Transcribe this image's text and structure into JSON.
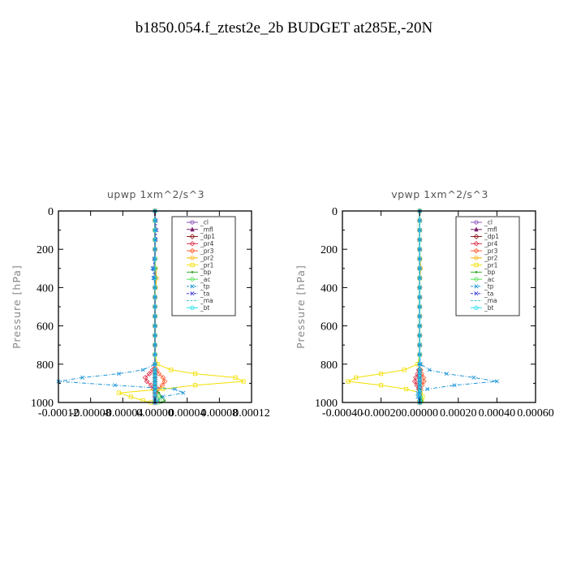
{
  "figure_title": "b1850.054.f_ztest2e_2b  BUDGET at285E,-20N",
  "colors": {
    "_cl": "#8a4fb8",
    "_mfl": "#7a1f6e",
    "_dp1": "#8b1a1a",
    "_pr4": "#e0304a",
    "_pr3": "#ff5a2e",
    "_pr2": "#ffb000",
    "_pr1": "#f2e000",
    "_bp": "#3aa832",
    "_ac": "#52e052",
    "_tp": "#1e96d8",
    "_ta": "#3a3ad8",
    "_ma": "#40c8d8",
    "_bt": "#20e0f0"
  },
  "chart_data": [
    {
      "type": "line",
      "title": "upwp   1xm^2/s^3",
      "ylabel": "Pressure [hPa]",
      "xlabel": "",
      "ylim": [
        1000,
        0
      ],
      "yticks": [
        0,
        200,
        400,
        600,
        800,
        1000
      ],
      "xlim": [
        -0.00012,
        0.00012
      ],
      "xtick_values": [
        -0.00012,
        -8e-05,
        -4e-05,
        0,
        4e-05,
        8e-05,
        0.00012
      ],
      "xticks": [
        "-0.00012",
        "-0.00008",
        "-0.00004",
        "0.00000",
        "0.00004",
        "0.00008",
        "0.00012"
      ],
      "grid": false,
      "legend_position": "upper-right",
      "legend": [
        "_cl",
        "_mfl",
        "_dp1",
        "_pr4",
        "_pr3",
        "_pr2",
        "_pr1",
        "_bp",
        "_ac",
        "_tp",
        "_ta",
        "_ma",
        "_bt"
      ],
      "y_levels": [
        0,
        50,
        100,
        150,
        200,
        250,
        300,
        350,
        400,
        450,
        500,
        550,
        600,
        650,
        700,
        750,
        800,
        830,
        850,
        870,
        890,
        910,
        930,
        950,
        970,
        990,
        1000
      ],
      "series": [
        {
          "name": "_cl",
          "x": [
            0,
            0,
            0,
            0,
            0,
            0,
            0,
            0,
            0,
            0,
            0,
            0,
            0,
            0,
            0,
            0,
            0,
            0,
            0,
            0,
            0,
            0,
            0,
            0,
            0,
            0,
            0
          ]
        },
        {
          "name": "_mfl",
          "x": [
            0,
            0,
            0,
            0,
            0,
            0,
            0,
            0,
            0,
            0,
            0,
            0,
            0,
            0,
            0,
            0,
            0,
            0,
            0,
            0,
            0,
            0,
            0,
            0,
            0,
            0,
            0
          ]
        },
        {
          "name": "_dp1",
          "x": [
            0,
            0,
            0,
            0,
            0,
            0,
            0,
            0,
            0,
            0,
            0,
            0,
            0,
            0,
            0,
            0,
            0,
            0,
            0,
            0,
            0,
            0,
            0,
            0,
            0,
            0,
            0
          ]
        },
        {
          "name": "_pr4",
          "x": [
            0,
            0,
            0,
            0,
            0,
            0,
            0,
            0,
            0,
            0,
            0,
            0,
            0,
            0,
            0,
            0,
            0,
            -3e-06,
            -7e-06,
            -1.2e-05,
            -1e-05,
            -5e-06,
            -2e-06,
            0,
            0,
            0,
            0
          ]
        },
        {
          "name": "_pr3",
          "x": [
            0,
            0,
            0,
            0,
            0,
            0,
            0,
            0,
            0,
            0,
            0,
            0,
            0,
            0,
            0,
            0,
            0,
            2e-06,
            5e-06,
            1e-05,
            1.2e-05,
            9e-06,
            4e-06,
            1e-06,
            0,
            0,
            0
          ]
        },
        {
          "name": "_pr2",
          "x": [
            0,
            0,
            0,
            0,
            0,
            0,
            1e-06,
            2e-06,
            1e-06,
            0,
            0,
            0,
            0,
            0,
            0,
            0,
            0,
            0,
            0,
            0,
            0,
            0,
            0,
            0,
            0,
            0,
            0
          ]
        },
        {
          "name": "_pr1",
          "x": [
            0,
            0,
            0,
            0,
            0,
            0,
            0,
            0,
            0,
            0,
            0,
            0,
            0,
            0,
            0,
            0,
            3e-06,
            2e-05,
            5e-05,
            0.0001,
            0.00011,
            5e-05,
            1e-05,
            -4.5e-05,
            -3e-05,
            -1.5e-05,
            -5e-06
          ]
        },
        {
          "name": "_bp",
          "x": [
            0,
            0,
            0,
            0,
            0,
            0,
            0,
            0,
            0,
            0,
            0,
            0,
            0,
            0,
            0,
            0,
            0,
            0,
            0,
            0,
            0,
            0,
            0,
            5e-06,
            8e-06,
            1.2e-05,
            8e-06
          ]
        },
        {
          "name": "_ac",
          "x": [
            0,
            0,
            0,
            0,
            0,
            0,
            0,
            0,
            0,
            0,
            0,
            0,
            0,
            0,
            0,
            0,
            0,
            0,
            0,
            0,
            0,
            0,
            0,
            0,
            4e-06,
            6e-06,
            4e-06
          ]
        },
        {
          "name": "_tp",
          "x": [
            0,
            0,
            0,
            0,
            0,
            0,
            -3e-06,
            -2e-06,
            0,
            0,
            0,
            0,
            0,
            0,
            0,
            0,
            0,
            -1.5e-05,
            -4.5e-05,
            -9e-05,
            -0.00012,
            -5e-05,
            2.5e-05,
            3.5e-05,
            1e-05,
            3e-06,
            0
          ]
        },
        {
          "name": "_ta",
          "x": [
            0,
            1e-06,
            2e-06,
            1e-06,
            0,
            -1e-06,
            -2e-06,
            -1e-06,
            0,
            0,
            0,
            0,
            0,
            0,
            0,
            0,
            0,
            0,
            0,
            0,
            0,
            0,
            0,
            0,
            0,
            0,
            0
          ]
        },
        {
          "name": "_ma",
          "x": [
            0,
            0,
            0,
            0,
            0,
            0,
            0,
            0,
            0,
            0,
            0,
            0,
            0,
            0,
            0,
            0,
            0,
            0,
            0,
            0,
            0,
            0,
            0,
            0,
            0,
            0,
            0
          ]
        },
        {
          "name": "_bt",
          "x": [
            0,
            0,
            0,
            0,
            0,
            0,
            0,
            0,
            0,
            0,
            0,
            0,
            0,
            0,
            0,
            0,
            0,
            0,
            0,
            0,
            0,
            0,
            0,
            0,
            0,
            0,
            0
          ]
        }
      ]
    },
    {
      "type": "line",
      "title": "vpwp   1xm^2/s^3",
      "ylabel": "Pressure [hPa]",
      "xlabel": "",
      "ylim": [
        1000,
        0
      ],
      "yticks": [
        0,
        200,
        400,
        600,
        800,
        1000
      ],
      "xlim": [
        -0.0004,
        0.0006
      ],
      "xtick_values": [
        -0.0004,
        -0.0002,
        0,
        0.0002,
        0.0004,
        0.0006
      ],
      "xticks": [
        "-0.00040",
        "-0.00020",
        "0.00000",
        "0.00020",
        "0.00040",
        "0.00060"
      ],
      "grid": false,
      "legend_position": "upper-right",
      "legend": [
        "_cl",
        "_mfl",
        "_dp1",
        "_pr4",
        "_pr3",
        "_pr2",
        "_pr1",
        "_bp",
        "_ac",
        "_tp",
        "_ta",
        "_ma",
        "_bt"
      ],
      "y_levels": [
        0,
        50,
        100,
        150,
        200,
        250,
        300,
        350,
        400,
        450,
        500,
        550,
        600,
        650,
        700,
        750,
        800,
        830,
        850,
        870,
        890,
        910,
        930,
        950,
        970,
        990,
        1000
      ],
      "series": [
        {
          "name": "_cl",
          "x": [
            0,
            0,
            0,
            0,
            0,
            0,
            0,
            0,
            0,
            0,
            0,
            0,
            0,
            0,
            0,
            0,
            0,
            0,
            0,
            0,
            0,
            0,
            0,
            0,
            0,
            0,
            0
          ]
        },
        {
          "name": "_mfl",
          "x": [
            0,
            0,
            0,
            0,
            0,
            0,
            0,
            0,
            0,
            0,
            0,
            0,
            0,
            0,
            0,
            0,
            0,
            0,
            0,
            0,
            0,
            0,
            0,
            0,
            0,
            0,
            0
          ]
        },
        {
          "name": "_dp1",
          "x": [
            0,
            0,
            0,
            0,
            0,
            0,
            0,
            0,
            0,
            0,
            0,
            0,
            0,
            0,
            0,
            0,
            0,
            0,
            0,
            0,
            0,
            0,
            0,
            0,
            0,
            0,
            0
          ]
        },
        {
          "name": "_pr4",
          "x": [
            0,
            0,
            0,
            0,
            0,
            0,
            0,
            0,
            0,
            0,
            0,
            0,
            0,
            0,
            0,
            0,
            0,
            -5e-06,
            -1e-05,
            -2e-05,
            -2.5e-05,
            -1.5e-05,
            -5e-06,
            0,
            0,
            0,
            0
          ]
        },
        {
          "name": "_pr3",
          "x": [
            0,
            0,
            0,
            0,
            0,
            0,
            0,
            0,
            0,
            0,
            0,
            0,
            0,
            0,
            0,
            0,
            0,
            5e-06,
            1e-05,
            2e-05,
            2.2e-05,
            1.2e-05,
            4e-06,
            0,
            0,
            0,
            0
          ]
        },
        {
          "name": "_pr2",
          "x": [
            0,
            0,
            0,
            0,
            0,
            3e-06,
            5e-06,
            2e-06,
            0,
            0,
            0,
            0,
            0,
            0,
            0,
            0,
            0,
            0,
            0,
            0,
            0,
            0,
            0,
            0,
            0,
            0,
            0
          ]
        },
        {
          "name": "_pr1",
          "x": [
            0,
            0,
            0,
            0,
            0,
            0,
            0,
            0,
            0,
            0,
            0,
            0,
            0,
            0,
            0,
            0,
            -1e-05,
            -8e-05,
            -0.0002,
            -0.00033,
            -0.00037,
            -0.0002,
            -7e-05,
            5e-06,
            1.5e-05,
            1e-05,
            0
          ]
        },
        {
          "name": "_bp",
          "x": [
            0,
            0,
            0,
            0,
            0,
            0,
            0,
            0,
            0,
            0,
            0,
            0,
            0,
            0,
            0,
            0,
            0,
            0,
            0,
            0,
            0,
            0,
            0,
            0,
            5e-06,
            1e-05,
            5e-06
          ]
        },
        {
          "name": "_ac",
          "x": [
            0,
            0,
            0,
            0,
            0,
            0,
            0,
            0,
            0,
            0,
            0,
            0,
            0,
            0,
            0,
            0,
            0,
            0,
            0,
            0,
            0,
            0,
            0,
            0,
            4e-06,
            8e-06,
            4e-06
          ]
        },
        {
          "name": "_tp",
          "x": [
            0,
            0,
            0,
            0,
            0,
            0,
            0,
            0,
            0,
            0,
            0,
            0,
            0,
            0,
            0,
            0,
            5e-06,
            5e-05,
            0.00014,
            0.00028,
            0.0004,
            0.00018,
            4e-05,
            -1e-05,
            -1e-05,
            0,
            0
          ]
        },
        {
          "name": "_ta",
          "x": [
            0,
            0,
            0,
            0,
            0,
            0,
            0,
            0,
            0,
            0,
            0,
            0,
            0,
            0,
            0,
            0,
            0,
            0,
            0,
            0,
            0,
            0,
            0,
            0,
            0,
            0,
            0
          ]
        },
        {
          "name": "_ma",
          "x": [
            0,
            0,
            0,
            0,
            0,
            0,
            0,
            0,
            0,
            0,
            0,
            0,
            0,
            0,
            0,
            0,
            0,
            0,
            0,
            0,
            0,
            0,
            0,
            0,
            0,
            0,
            0
          ]
        },
        {
          "name": "_bt",
          "x": [
            0,
            0,
            0,
            0,
            0,
            0,
            0,
            0,
            0,
            0,
            0,
            0,
            0,
            0,
            0,
            0,
            0,
            0,
            0,
            0,
            0,
            0,
            0,
            0,
            0,
            0,
            0
          ]
        }
      ]
    }
  ]
}
